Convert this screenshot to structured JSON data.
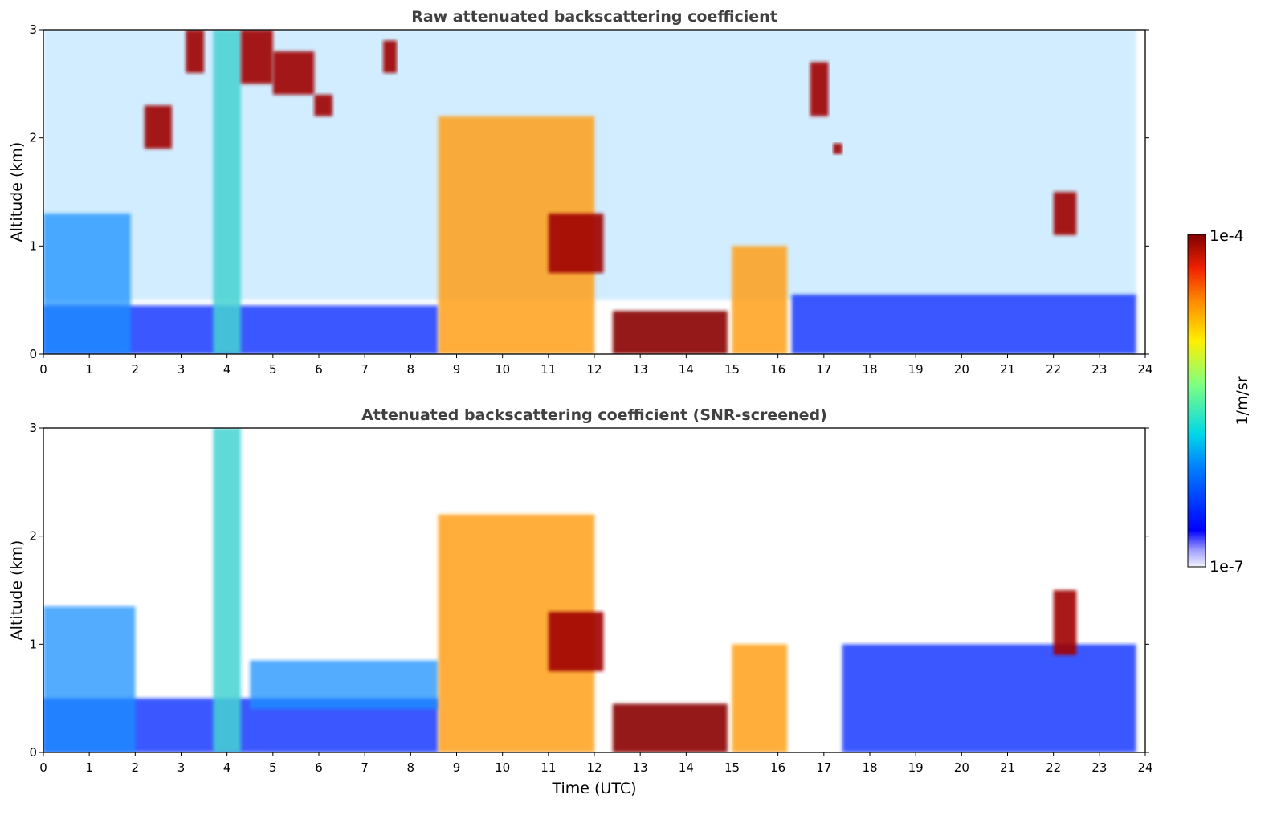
{
  "chart_data": [
    {
      "type": "heatmap",
      "title": "Raw attenuated backscattering coefficient",
      "xlabel": "",
      "ylabel": "Altitude (km)",
      "xlim": [
        0,
        24
      ],
      "ylim": [
        0,
        3
      ],
      "xticks": [
        "0",
        "1",
        "2",
        "3",
        "4",
        "5",
        "6",
        "7",
        "8",
        "9",
        "10",
        "11",
        "12",
        "13",
        "14",
        "15",
        "16",
        "17",
        "18",
        "19",
        "20",
        "21",
        "22",
        "23",
        "24"
      ],
      "yticks": [
        "0",
        "1",
        "2",
        "3"
      ],
      "features": [
        {
          "kind": "noise",
          "x": [
            0,
            23.8
          ],
          "y": [
            0.5,
            3
          ]
        },
        {
          "kind": "boundary_layer",
          "x": [
            0,
            8.6
          ],
          "y": [
            0,
            0.45
          ]
        },
        {
          "kind": "boundary_layer",
          "x": [
            16.3,
            23.8
          ],
          "y": [
            0,
            0.55
          ]
        },
        {
          "kind": "aerosol_layer",
          "x": [
            0,
            1.9
          ],
          "y": [
            0,
            1.3
          ]
        },
        {
          "kind": "rain_shaft",
          "x": [
            3.7,
            4.3
          ],
          "y": [
            0,
            3
          ]
        },
        {
          "kind": "precip_column",
          "x": [
            8.6,
            12.0
          ],
          "y": [
            0,
            2.2
          ]
        },
        {
          "kind": "low_cloud",
          "x": [
            12.4,
            14.9
          ],
          "y": [
            0,
            0.4
          ]
        },
        {
          "kind": "precip_column",
          "x": [
            15.0,
            16.2
          ],
          "y": [
            0,
            1.0
          ]
        },
        {
          "kind": "cloud_segment",
          "x": [
            2.2,
            2.8
          ],
          "y": [
            1.9,
            2.3
          ]
        },
        {
          "kind": "cloud_segment",
          "x": [
            3.1,
            3.5
          ],
          "y": [
            2.6,
            3.0
          ]
        },
        {
          "kind": "cloud_segment",
          "x": [
            4.3,
            5.0
          ],
          "y": [
            2.5,
            3.0
          ]
        },
        {
          "kind": "cloud_segment",
          "x": [
            5.0,
            5.9
          ],
          "y": [
            2.4,
            2.8
          ]
        },
        {
          "kind": "cloud_segment",
          "x": [
            5.9,
            6.3
          ],
          "y": [
            2.2,
            2.4
          ]
        },
        {
          "kind": "cloud_segment",
          "x": [
            7.4,
            7.7
          ],
          "y": [
            2.6,
            2.9
          ]
        },
        {
          "kind": "cloud_segment",
          "x": [
            11.0,
            12.2
          ],
          "y": [
            0.75,
            1.3
          ]
        },
        {
          "kind": "cloud_segment",
          "x": [
            16.7,
            17.1
          ],
          "y": [
            2.2,
            2.7
          ]
        },
        {
          "kind": "cloud_segment",
          "x": [
            17.2,
            17.4
          ],
          "y": [
            1.85,
            1.95
          ]
        },
        {
          "kind": "cloud_segment",
          "x": [
            22.0,
            22.5
          ],
          "y": [
            1.1,
            1.5
          ]
        }
      ]
    },
    {
      "type": "heatmap",
      "title": "Attenuated backscattering coefficient (SNR-screened)",
      "xlabel": "Time (UTC)",
      "ylabel": "Altitude (km)",
      "xlim": [
        0,
        24
      ],
      "ylim": [
        0,
        3
      ],
      "xticks": [
        "0",
        "1",
        "2",
        "3",
        "4",
        "5",
        "6",
        "7",
        "8",
        "9",
        "10",
        "11",
        "12",
        "13",
        "14",
        "15",
        "16",
        "17",
        "18",
        "19",
        "20",
        "21",
        "22",
        "23",
        "24"
      ],
      "yticks": [
        "0",
        "1",
        "2",
        "3"
      ],
      "features": [
        {
          "kind": "boundary_layer",
          "x": [
            0,
            8.6
          ],
          "y": [
            0,
            0.5
          ]
        },
        {
          "kind": "aerosol_layer",
          "x": [
            0,
            2.0
          ],
          "y": [
            0,
            1.35
          ]
        },
        {
          "kind": "aerosol_layer",
          "x": [
            4.5,
            8.6
          ],
          "y": [
            0.4,
            0.85
          ]
        },
        {
          "kind": "boundary_layer",
          "x": [
            17.4,
            23.8
          ],
          "y": [
            0,
            1.0
          ]
        },
        {
          "kind": "rain_shaft",
          "x": [
            3.7,
            4.3
          ],
          "y": [
            0,
            3
          ]
        },
        {
          "kind": "precip_column",
          "x": [
            8.6,
            12.0
          ],
          "y": [
            0,
            2.2
          ]
        },
        {
          "kind": "low_cloud",
          "x": [
            12.4,
            14.9
          ],
          "y": [
            0,
            0.45
          ]
        },
        {
          "kind": "precip_column",
          "x": [
            15.0,
            16.2
          ],
          "y": [
            0,
            1.0
          ]
        },
        {
          "kind": "cloud_segment",
          "x": [
            22.0,
            22.5
          ],
          "y": [
            0.9,
            1.5
          ]
        },
        {
          "kind": "cloud_segment",
          "x": [
            11.0,
            12.2
          ],
          "y": [
            0.75,
            1.3
          ]
        }
      ]
    }
  ],
  "colorbar": {
    "min_label": "1e-7",
    "max_label": "1e-4",
    "label": "1/m/sr",
    "scale": "log"
  }
}
